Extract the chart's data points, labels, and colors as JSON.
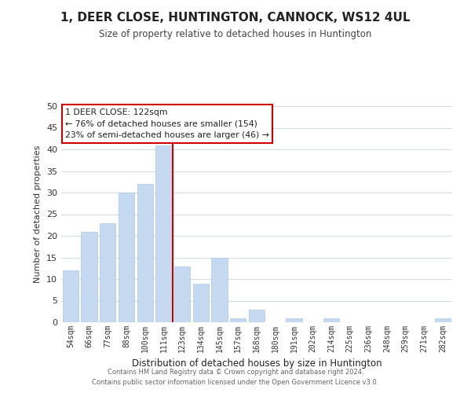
{
  "title": "1, DEER CLOSE, HUNTINGTON, CANNOCK, WS12 4UL",
  "subtitle": "Size of property relative to detached houses in Huntington",
  "xlabel": "Distribution of detached houses by size in Huntington",
  "ylabel": "Number of detached properties",
  "bar_labels": [
    "54sqm",
    "66sqm",
    "77sqm",
    "88sqm",
    "100sqm",
    "111sqm",
    "123sqm",
    "134sqm",
    "145sqm",
    "157sqm",
    "168sqm",
    "180sqm",
    "191sqm",
    "202sqm",
    "214sqm",
    "225sqm",
    "236sqm",
    "248sqm",
    "259sqm",
    "271sqm",
    "282sqm"
  ],
  "bar_values": [
    12,
    21,
    23,
    30,
    32,
    41,
    13,
    9,
    15,
    1,
    3,
    0,
    1,
    0,
    1,
    0,
    0,
    0,
    0,
    0,
    1
  ],
  "highlight_index": 6,
  "bar_color_normal": "#c5d9f1",
  "highlight_line_color": "#cc0000",
  "ylim": [
    0,
    50
  ],
  "yticks": [
    0,
    5,
    10,
    15,
    20,
    25,
    30,
    35,
    40,
    45,
    50
  ],
  "annotation_title": "1 DEER CLOSE: 122sqm",
  "annotation_line1": "← 76% of detached houses are smaller (154)",
  "annotation_line2": "23% of semi-detached houses are larger (46) →",
  "annotation_box_color": "#ffffff",
  "annotation_box_edge": "#cc0000",
  "footer_line1": "Contains HM Land Registry data © Crown copyright and database right 2024.",
  "footer_line2": "Contains public sector information licensed under the Open Government Licence v3.0.",
  "background_color": "#ffffff",
  "grid_color": "#d0dce8"
}
